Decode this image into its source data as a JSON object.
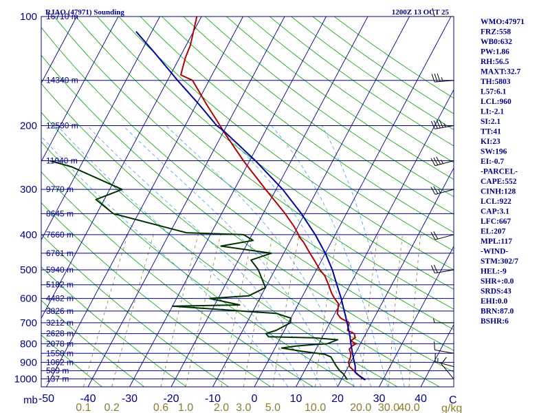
{
  "header": {
    "station_title": "RJAO (47971) Sounding",
    "time_title": "1200Z 13 OCT 25"
  },
  "chart_data": {
    "type": "skew-t log-p sounding",
    "x_unit_label": "C",
    "y_unit_label": "mb",
    "mixing_ratio_unit_label": "g/kg",
    "temperature_ticks": [
      -50,
      -40,
      -30,
      -20,
      -10,
      0,
      10,
      20,
      30,
      40
    ],
    "pressure_ticks": [
      100,
      200,
      300,
      400,
      500,
      600,
      700,
      800,
      900,
      1000
    ],
    "mixing_ratio_labels": [
      "0.1",
      "0.2",
      "0.6",
      "1.0",
      "2.0",
      "3.0",
      "5.0",
      "10.0",
      "20.0",
      "30.0",
      "40.0"
    ],
    "height_levels": [
      {
        "p": 100,
        "label": "16710 m"
      },
      {
        "p": 150,
        "label": "14340 m"
      },
      {
        "p": 200,
        "label": "12530 m"
      },
      {
        "p": 250,
        "label": "11040 m"
      },
      {
        "p": 300,
        "label": "9770 m"
      },
      {
        "p": 350,
        "label": "8645 m"
      },
      {
        "p": 400,
        "label": "7660 m"
      },
      {
        "p": 450,
        "label": "6761 m"
      },
      {
        "p": 500,
        "label": "5940 m"
      },
      {
        "p": 550,
        "label": "5182 m"
      },
      {
        "p": 600,
        "label": "4482 m"
      },
      {
        "p": 650,
        "label": "3826 m"
      },
      {
        "p": 700,
        "label": "3212 m"
      },
      {
        "p": 750,
        "label": "2628 m"
      },
      {
        "p": 800,
        "label": "2078 m"
      },
      {
        "p": 850,
        "label": "1558 m"
      },
      {
        "p": 900,
        "label": "1062 m"
      },
      {
        "p": 950,
        "label": "589 m"
      },
      {
        "p": 1000,
        "label": "137 m"
      }
    ],
    "series": [
      {
        "kind": "temperature",
        "color": "#b00000",
        "points": [
          [
            1006,
            25.8
          ],
          [
            1000,
            25.1
          ],
          [
            987,
            24.2
          ],
          [
            966,
            22.9
          ],
          [
            950,
            21.9
          ],
          [
            925,
            20.3
          ],
          [
            900,
            19.5
          ],
          [
            870,
            19.3
          ],
          [
            850,
            18.9
          ],
          [
            828,
            18.0
          ],
          [
            812,
            18.3
          ],
          [
            800,
            18.9
          ],
          [
            785,
            17.3
          ],
          [
            770,
            18.0
          ],
          [
            750,
            17.2
          ],
          [
            735,
            15.2
          ],
          [
            700,
            14.6
          ],
          [
            680,
            12.0
          ],
          [
            661,
            10.6
          ],
          [
            650,
            10.4
          ],
          [
            620,
            9.6
          ],
          [
            600,
            8.0
          ],
          [
            580,
            6.6
          ],
          [
            550,
            4.8
          ],
          [
            520,
            2.8
          ],
          [
            500,
            0.8
          ],
          [
            470,
            -1.8
          ],
          [
            450,
            -3.7
          ],
          [
            420,
            -6.6
          ],
          [
            405,
            -8.4
          ],
          [
            400,
            -8.8
          ],
          [
            380,
            -10.9
          ],
          [
            350,
            -14.7
          ],
          [
            300,
            -22.5
          ],
          [
            260,
            -29.6
          ],
          [
            250,
            -31.5
          ],
          [
            210,
            -39.5
          ],
          [
            200,
            -41.6
          ],
          [
            175,
            -47.5
          ],
          [
            150,
            -54.0
          ],
          [
            145,
            -57.5
          ],
          [
            130,
            -58.6
          ],
          [
            120,
            -59.0
          ],
          [
            100,
            -61.1
          ]
        ]
      },
      {
        "kind": "dewpoint",
        "color": "#003000",
        "points": [
          [
            1006,
            21.4
          ],
          [
            1000,
            21.2
          ],
          [
            970,
            19.8
          ],
          [
            950,
            18.5
          ],
          [
            925,
            17.2
          ],
          [
            900,
            16.0
          ],
          [
            870,
            14.6
          ],
          [
            855,
            12.7
          ],
          [
            840,
            7.2
          ],
          [
            822,
            1.6
          ],
          [
            812,
            4.8
          ],
          [
            805,
            8.5
          ],
          [
            800,
            12.0
          ],
          [
            790,
            13.0
          ],
          [
            780,
            14.0
          ],
          [
            770,
            8.0
          ],
          [
            765,
            -3.0
          ],
          [
            750,
            -4.0
          ],
          [
            735,
            -2.0
          ],
          [
            700,
            0.5
          ],
          [
            680,
            0.0
          ],
          [
            660,
            -4.0
          ],
          [
            630,
            -30.0
          ],
          [
            625,
            -14.0
          ],
          [
            600,
            -22.0
          ],
          [
            590,
            -13.0
          ],
          [
            560,
            -10.0
          ],
          [
            500,
            -14.0
          ],
          [
            470,
            -17.0
          ],
          [
            450,
            -13.0
          ],
          [
            430,
            -26.0
          ],
          [
            415,
            -19.0
          ],
          [
            400,
            -22.0
          ],
          [
            395,
            -36.0
          ],
          [
            350,
            -56.0
          ],
          [
            320,
            -62.0
          ],
          [
            300,
            -57.0
          ],
          [
            260,
            -72.0
          ],
          [
            250,
            -78.0
          ]
        ]
      },
      {
        "kind": "parcel",
        "color": "#0000a0",
        "points": [
          [
            1006,
            25.8
          ],
          [
            975,
            23.4
          ],
          [
            960,
            22.4
          ],
          [
            922,
            21.6
          ],
          [
            900,
            20.9
          ],
          [
            850,
            19.3
          ],
          [
            800,
            17.7
          ],
          [
            750,
            16.1
          ],
          [
            700,
            14.1
          ],
          [
            667,
            12.7
          ],
          [
            600,
            9.6
          ],
          [
            550,
            6.8
          ],
          [
            500,
            3.8
          ],
          [
            450,
            0.0
          ],
          [
            400,
            -4.8
          ],
          [
            350,
            -10.8
          ],
          [
            300,
            -18.4
          ],
          [
            250,
            -28.6
          ],
          [
            207,
            -40.0
          ],
          [
            200,
            -42.4
          ],
          [
            175,
            -49.3
          ],
          [
            150,
            -57.6
          ],
          [
            125,
            -67.0
          ],
          [
            110,
            -73.8
          ]
        ]
      }
    ],
    "wind_barbs": [
      {
        "p": 1000,
        "dir": 320,
        "spd": 12
      },
      {
        "p": 925,
        "dir": 285,
        "spd": 15
      },
      {
        "p": 850,
        "dir": 280,
        "spd": 12
      },
      {
        "p": 700,
        "dir": 270,
        "spd": 8
      },
      {
        "p": 500,
        "dir": 260,
        "spd": 20
      },
      {
        "p": 400,
        "dir": 255,
        "spd": 22
      },
      {
        "p": 300,
        "dir": 255,
        "spd": 25
      },
      {
        "p": 250,
        "dir": 255,
        "spd": 35
      },
      {
        "p": 200,
        "dir": 260,
        "spd": 45
      },
      {
        "p": 150,
        "dir": 265,
        "spd": 35
      },
      {
        "p": 100,
        "dir": 270,
        "spd": 10
      }
    ],
    "colors": {
      "isobar": "#000080",
      "isotherm": "#000080",
      "dry_adiabat": "#00a000",
      "moist_adiabat": "#40a0e0",
      "mixing_ratio": "#8b7d2b",
      "wind_barb": "#000000"
    }
  },
  "indices": [
    "WMO:47971",
    "FRZ:558",
    "WB0:632",
    "PW:1.86",
    "RH:56.5",
    "MAXT:32.7",
    "TH:5803",
    "L57:6.1",
    "LCL:960",
    "LI:-2.1",
    "SI:2.1",
    "TT:41",
    "KI:23",
    "SW:196",
    "EI:-0.7",
    "-PARCEL-",
    "CAPE:552",
    "CINH:128",
    "LCL:922",
    "CAP:3.1",
    "LFC:667",
    "EL:207",
    "MPL:117",
    "-WIND-",
    "STM:302/7",
    "HEL:-9",
    "SHR+:0.0",
    "SRDS:43",
    "EHI:0.0",
    "BRN:87.0",
    "BSHR:6"
  ]
}
